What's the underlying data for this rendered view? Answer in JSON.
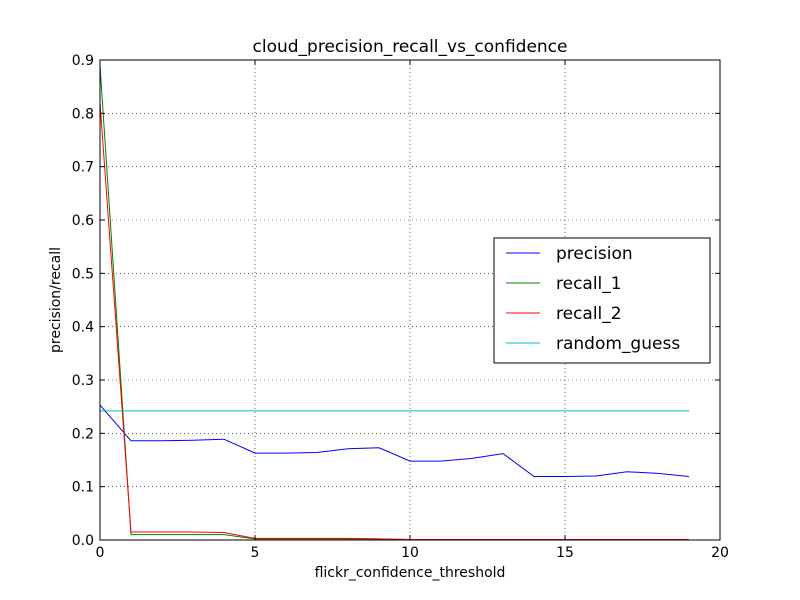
{
  "chart_data": {
    "type": "line",
    "title": "cloud_precision_recall_vs_confidence",
    "xlabel": "flickr_confidence_threshold",
    "ylabel": "precision/recall",
    "xlim": [
      0,
      20
    ],
    "ylim": [
      0,
      0.9
    ],
    "xticks": [
      0,
      5,
      10,
      15,
      20
    ],
    "yticks": [
      0.0,
      0.1,
      0.2,
      0.3,
      0.4,
      0.5,
      0.6,
      0.7,
      0.8,
      0.9
    ],
    "xtick_labels": [
      "0",
      "5",
      "10",
      "15",
      "20"
    ],
    "ytick_labels": [
      "0.0",
      "0.1",
      "0.2",
      "0.3",
      "0.4",
      "0.5",
      "0.6",
      "0.7",
      "0.8",
      "0.9"
    ],
    "grid": true,
    "legend_position": "center-right",
    "x": [
      0,
      1,
      2,
      3,
      4,
      5,
      6,
      7,
      8,
      9,
      10,
      11,
      12,
      13,
      14,
      15,
      16,
      17,
      18,
      19
    ],
    "series": [
      {
        "name": "precision",
        "color": "#0000ff",
        "values": [
          0.253,
          0.186,
          0.186,
          0.187,
          0.189,
          0.163,
          0.163,
          0.164,
          0.171,
          0.173,
          0.148,
          0.148,
          0.153,
          0.162,
          0.119,
          0.119,
          0.12,
          0.128,
          0.125,
          0.119
        ]
      },
      {
        "name": "recall_1",
        "color": "#008000",
        "values": [
          0.89,
          0.01,
          0.01,
          0.01,
          0.01,
          0.002,
          0.002,
          0.002,
          0.002,
          0.002,
          0.001,
          0.001,
          0.001,
          0.001,
          0.001,
          0.001,
          0.001,
          0.001,
          0.001,
          0.001
        ]
      },
      {
        "name": "recall_2",
        "color": "#ff0000",
        "values": [
          0.82,
          0.015,
          0.015,
          0.015,
          0.014,
          0.003,
          0.003,
          0.003,
          0.003,
          0.002,
          0.001,
          0.001,
          0.001,
          0.001,
          0.001,
          0.001,
          0.001,
          0.001,
          0.001,
          0.001
        ]
      },
      {
        "name": "random_guess",
        "color": "#00bfbf",
        "values": [
          0.242,
          0.242,
          0.242,
          0.242,
          0.242,
          0.242,
          0.242,
          0.242,
          0.242,
          0.242,
          0.242,
          0.242,
          0.242,
          0.242,
          0.242,
          0.242,
          0.242,
          0.242,
          0.242,
          0.242
        ]
      }
    ]
  }
}
